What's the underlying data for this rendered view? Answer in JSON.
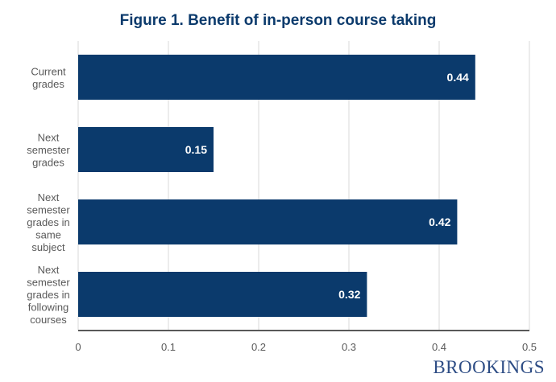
{
  "chart_data": {
    "type": "bar",
    "orientation": "horizontal",
    "title": "Figure 1. Benefit of in-person course taking",
    "categories": [
      [
        "Current",
        "grades"
      ],
      [
        "Next",
        "semester",
        "grades"
      ],
      [
        "Next",
        "semester",
        "grades in",
        "same",
        "subject"
      ],
      [
        "Next",
        "semester",
        "grades in",
        "following",
        "courses"
      ]
    ],
    "values": [
      0.44,
      0.15,
      0.42,
      0.32
    ],
    "data_labels": [
      "0.44",
      "0.15",
      "0.42",
      "0.32"
    ],
    "xlim": [
      0,
      0.5
    ],
    "xticks": [
      0,
      0.1,
      0.2,
      0.3,
      0.4,
      0.5
    ],
    "xtick_labels": [
      "0",
      "0.1",
      "0.2",
      "0.3",
      "0.4",
      "0.5"
    ],
    "xlabel": "",
    "ylabel": "",
    "grid": "vertical",
    "bar_color": "#0b3a6c"
  },
  "logo": "BROOKINGS"
}
